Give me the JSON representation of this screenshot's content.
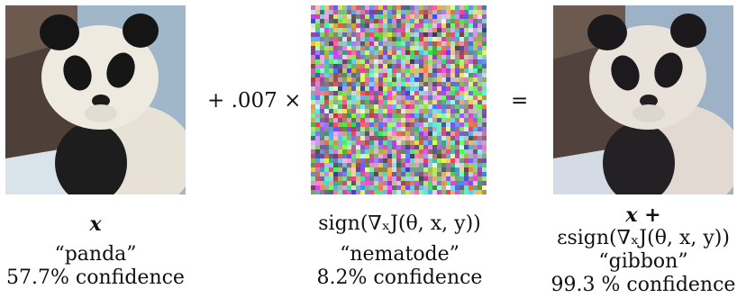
{
  "operators": {
    "multiply": "+ .007 ×",
    "equals": "="
  },
  "left": {
    "math": "x",
    "label": "“panda”",
    "confidence": "57.7% confidence"
  },
  "middle": {
    "math": "sign(∇ₓJ(θ, x, y))",
    "label": "“nematode”",
    "confidence": "8.2% confidence"
  },
  "right": {
    "math_line1": "x +",
    "math_line2": "εsign(∇ₓJ(θ, x, y))",
    "label": "“gibbon”",
    "confidence": "99.3 % confidence"
  }
}
